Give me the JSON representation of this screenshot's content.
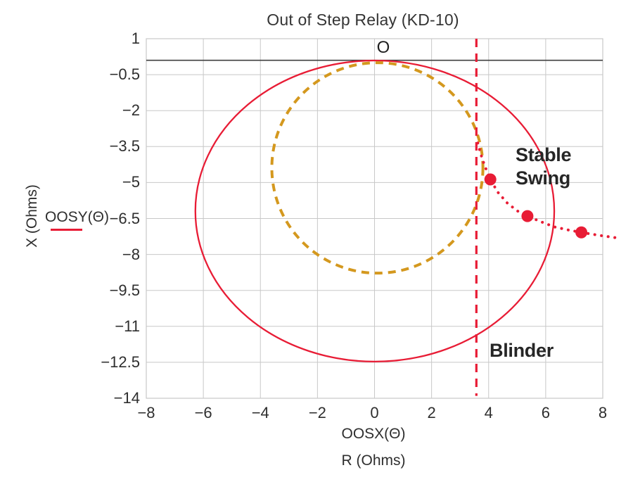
{
  "title": "Out of Step Relay (KD-10)",
  "origin_marker_text": "O",
  "legend": {
    "label": "OOSY(Θ)"
  },
  "axes": {
    "y_label": "X (Ohms)",
    "x_label_var": "OOSX(Θ)",
    "x_label_unit": "R (Ohms)"
  },
  "annotations": {
    "stable_swing_line1": "Stable",
    "stable_swing_line2": "Swing",
    "blinder": "Blinder"
  },
  "colors": {
    "relay_red": "#e81c35",
    "inner_gold": "#d4981e",
    "grid": "#c8c8c8",
    "zero_line": "#3f3f3f",
    "text": "#2e2e2e"
  },
  "chart_data": {
    "type": "line",
    "title": "Out of Step Relay (KD-10)",
    "xlabel": "OOSX(Θ)  R (Ohms)",
    "ylabel": "X (Ohms)",
    "xlim": [
      -8,
      8
    ],
    "ylim": [
      -14,
      1
    ],
    "x_ticks": [
      -8,
      -6,
      -4,
      -2,
      0,
      2,
      4,
      6,
      8
    ],
    "y_ticks": [
      1,
      -0.5,
      -2,
      -3.5,
      -5,
      -6.5,
      -8,
      -9.5,
      -11,
      -12.5,
      -14
    ],
    "grid": true,
    "zero_line_y": 0.1,
    "origin_marker": {
      "text": "O",
      "x": 0.32,
      "y": 0.6
    },
    "series": [
      {
        "name": "OOSY(Θ) outer mho characteristic",
        "type": "ellipse",
        "style": "solid",
        "color": "#e81c35",
        "center": [
          0.01,
          -6.19
        ],
        "rx": 6.29,
        "ry": 6.28,
        "stroke_width": 2.3
      },
      {
        "name": "inner mho characteristic",
        "type": "ellipse",
        "style": "dashed",
        "color": "#d4981e",
        "center": [
          0.1,
          -4.39
        ],
        "rx": 3.7,
        "ry": 4.39,
        "stroke_width": 4,
        "dash": "11 8"
      },
      {
        "name": "blinder line",
        "type": "vline",
        "style": "dashed",
        "color": "#e81c35",
        "x": 3.57,
        "y_from": 1,
        "y_to": -13.9,
        "stroke_width": 3.2,
        "dash": "12 9"
      },
      {
        "name": "stable swing trajectory",
        "type": "dotted-curve",
        "color": "#e81c35",
        "stroke_width": 4,
        "points": [
          [
            3.62,
            -3.35
          ],
          [
            3.72,
            -3.8
          ],
          [
            3.86,
            -4.3
          ],
          [
            4.06,
            -4.87
          ],
          [
            4.32,
            -5.4
          ],
          [
            4.65,
            -5.85
          ],
          [
            5.0,
            -6.18
          ],
          [
            5.36,
            -6.4
          ],
          [
            5.8,
            -6.62
          ],
          [
            6.3,
            -6.85
          ],
          [
            6.8,
            -6.98
          ],
          [
            7.25,
            -7.08
          ],
          [
            7.85,
            -7.2
          ],
          [
            8.45,
            -7.3
          ]
        ]
      },
      {
        "name": "swing sample points",
        "type": "scatter",
        "color": "#e81c35",
        "radius": 8.5,
        "points": [
          [
            4.06,
            -4.87
          ],
          [
            5.36,
            -6.4
          ],
          [
            7.25,
            -7.08
          ]
        ]
      }
    ]
  }
}
